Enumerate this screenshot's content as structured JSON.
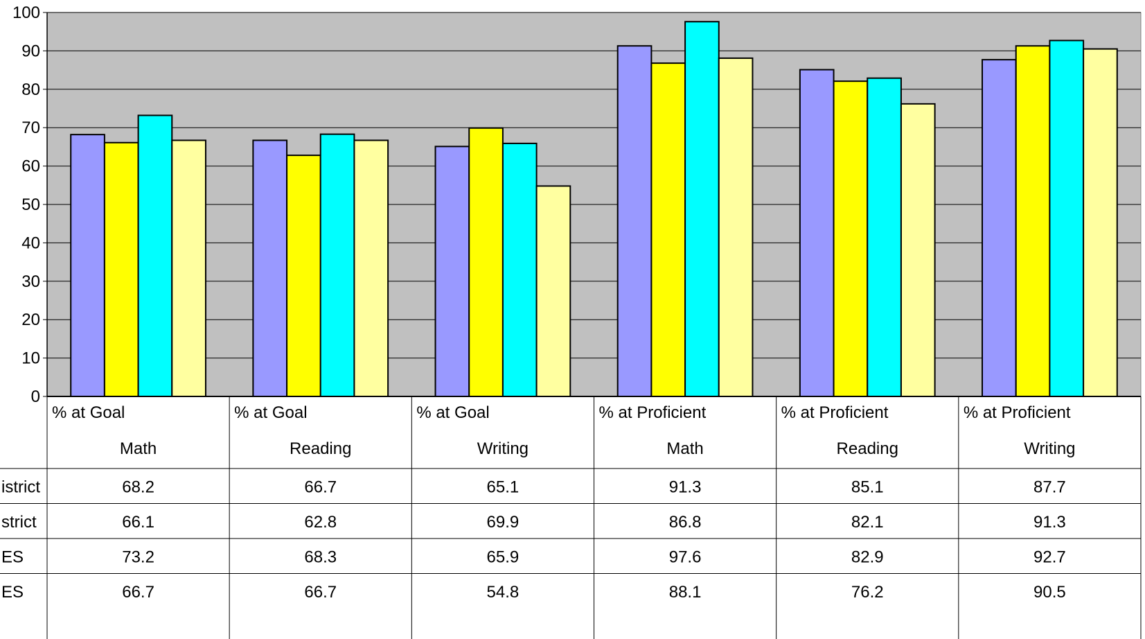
{
  "chart_data": {
    "type": "bar",
    "title": "",
    "xlabel": "",
    "ylabel": "",
    "ylim": [
      0,
      100
    ],
    "yticks": [
      "0",
      "10",
      "20",
      "30",
      "40",
      "50",
      "60",
      "70",
      "80",
      "90",
      "100"
    ],
    "grid": true,
    "legend": "data table below chart",
    "categories": [
      {
        "line1": "% at Goal",
        "line2": "Math"
      },
      {
        "line1": "% at Goal",
        "line2": "Reading"
      },
      {
        "line1": "% at Goal",
        "line2": "Writing"
      },
      {
        "line1": "% at Proficient",
        "line2": "Math"
      },
      {
        "line1": "% at Proficient",
        "line2": "Reading"
      },
      {
        "line1": "% at Proficient",
        "line2": "Writing"
      }
    ],
    "series": [
      {
        "name": "istrict",
        "color": "#9999ff",
        "values": [
          68.2,
          66.7,
          65.1,
          91.3,
          85.1,
          87.7
        ],
        "labels": [
          "68.2",
          "66.7",
          "65.1",
          "91.3",
          "85.1",
          "87.7"
        ]
      },
      {
        "name": "strict",
        "color": "#ffff00",
        "values": [
          66.1,
          62.8,
          69.9,
          86.8,
          82.1,
          91.3
        ],
        "labels": [
          "66.1",
          "62.8",
          "69.9",
          "86.8",
          "82.1",
          "91.3"
        ]
      },
      {
        "name": "ES",
        "color": "#00ffff",
        "values": [
          73.2,
          68.3,
          65.9,
          97.6,
          82.9,
          92.7
        ],
        "labels": [
          "73.2",
          "68.3",
          "65.9",
          "97.6",
          "82.9",
          "92.7"
        ]
      },
      {
        "name": "ES",
        "color": "#ffffa0",
        "values": [
          66.7,
          66.7,
          54.8,
          88.1,
          76.2,
          90.5
        ],
        "labels": [
          "66.7",
          "66.7",
          "54.8",
          "88.1",
          "76.2",
          "90.5"
        ]
      }
    ],
    "colors": {
      "plot_bg": "#c0c0c0",
      "grid": "#000000",
      "bar_border": "#000000"
    }
  }
}
